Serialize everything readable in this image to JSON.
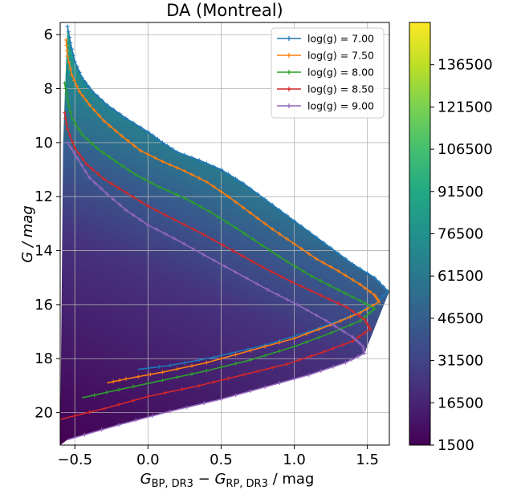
{
  "chart_data": {
    "type": "line",
    "title": "DA (Montreal)",
    "xlabel": {
      "base": "G",
      "sub1": "BP, DR3",
      "mid": " − G",
      "sub2": "RP, DR3",
      "unit": " / mag"
    },
    "ylabel": "G / mag",
    "xlim": [
      -0.6,
      1.65
    ],
    "ylim": [
      21.2,
      5.55
    ],
    "y_inverted": true,
    "grid": true,
    "legend_position": "top-right",
    "x_ticks": [
      {
        "v": -0.5,
        "label": "−0.5"
      },
      {
        "v": 0.0,
        "label": "0.0"
      },
      {
        "v": 0.5,
        "label": "0.5"
      },
      {
        "v": 1.0,
        "label": "1.0"
      },
      {
        "v": 1.5,
        "label": "1.5"
      }
    ],
    "y_ticks": [
      {
        "v": 6,
        "label": "6"
      },
      {
        "v": 8,
        "label": "8"
      },
      {
        "v": 10,
        "label": "10"
      },
      {
        "v": 12,
        "label": "12"
      },
      {
        "v": 14,
        "label": "14"
      },
      {
        "v": 16,
        "label": "16"
      },
      {
        "v": 18,
        "label": "18"
      },
      {
        "v": 20,
        "label": "20"
      }
    ],
    "colorbar": {
      "colormap": "viridis",
      "min": 1500,
      "max": 151500,
      "ticks": [
        "1500",
        "16500",
        "31500",
        "46500",
        "61500",
        "76500",
        "91500",
        "106500",
        "121500",
        "136500"
      ],
      "tick_values": [
        1500,
        16500,
        31500,
        46500,
        61500,
        76500,
        91500,
        106500,
        121500,
        136500
      ]
    },
    "series": [
      {
        "name": "log(g) = 7.00",
        "color": "#1f77b4",
        "points": [
          [
            -0.55,
            5.7
          ],
          [
            -0.53,
            6.3
          ],
          [
            -0.5,
            7.0
          ],
          [
            -0.45,
            7.6
          ],
          [
            -0.38,
            8.1
          ],
          [
            -0.28,
            8.6
          ],
          [
            -0.15,
            9.1
          ],
          [
            0.0,
            9.6
          ],
          [
            0.1,
            10.0
          ],
          [
            0.2,
            10.35
          ],
          [
            0.35,
            10.65
          ],
          [
            0.5,
            11.0
          ],
          [
            0.65,
            11.5
          ],
          [
            0.8,
            12.1
          ],
          [
            0.95,
            12.7
          ],
          [
            1.1,
            13.3
          ],
          [
            1.25,
            13.9
          ],
          [
            1.4,
            14.5
          ],
          [
            1.55,
            15.0
          ],
          [
            1.64,
            15.5
          ],
          [
            1.55,
            16.0
          ],
          [
            1.35,
            16.5
          ],
          [
            1.1,
            17.0
          ],
          [
            0.8,
            17.5
          ],
          [
            0.45,
            17.95
          ],
          [
            0.15,
            18.25
          ],
          [
            -0.07,
            18.4
          ]
        ]
      },
      {
        "name": "log(g) = 7.50",
        "color": "#ff7f0e",
        "points": [
          [
            -0.56,
            6.2
          ],
          [
            -0.55,
            6.8
          ],
          [
            -0.52,
            7.5
          ],
          [
            -0.47,
            8.1
          ],
          [
            -0.4,
            8.6
          ],
          [
            -0.3,
            9.2
          ],
          [
            -0.18,
            9.75
          ],
          [
            -0.05,
            10.3
          ],
          [
            0.1,
            10.7
          ],
          [
            0.25,
            11.05
          ],
          [
            0.4,
            11.45
          ],
          [
            0.55,
            12.0
          ],
          [
            0.7,
            12.6
          ],
          [
            0.85,
            13.2
          ],
          [
            1.0,
            13.75
          ],
          [
            1.15,
            14.3
          ],
          [
            1.3,
            14.75
          ],
          [
            1.45,
            15.25
          ],
          [
            1.55,
            15.65
          ],
          [
            1.58,
            15.9
          ],
          [
            1.45,
            16.3
          ],
          [
            1.25,
            16.75
          ],
          [
            1.0,
            17.25
          ],
          [
            0.7,
            17.7
          ],
          [
            0.4,
            18.15
          ],
          [
            0.1,
            18.5
          ],
          [
            -0.15,
            18.75
          ],
          [
            -0.28,
            18.9
          ]
        ]
      },
      {
        "name": "log(g) = 8.00",
        "color": "#2ca02c",
        "points": [
          [
            -0.57,
            7.8
          ],
          [
            -0.55,
            8.4
          ],
          [
            -0.52,
            9.1
          ],
          [
            -0.45,
            9.7
          ],
          [
            -0.35,
            10.2
          ],
          [
            -0.22,
            10.7
          ],
          [
            -0.08,
            11.2
          ],
          [
            0.08,
            11.65
          ],
          [
            0.25,
            12.05
          ],
          [
            0.42,
            12.55
          ],
          [
            0.6,
            13.15
          ],
          [
            0.78,
            13.8
          ],
          [
            0.95,
            14.4
          ],
          [
            1.12,
            14.95
          ],
          [
            1.3,
            15.45
          ],
          [
            1.45,
            15.85
          ],
          [
            1.55,
            16.15
          ],
          [
            1.45,
            16.6
          ],
          [
            1.25,
            17.05
          ],
          [
            1.0,
            17.55
          ],
          [
            0.7,
            18.05
          ],
          [
            0.4,
            18.45
          ],
          [
            0.1,
            18.8
          ],
          [
            -0.2,
            19.15
          ],
          [
            -0.45,
            19.45
          ]
        ]
      },
      {
        "name": "log(g) = 8.50",
        "color": "#d62728",
        "points": [
          [
            -0.57,
            8.9
          ],
          [
            -0.55,
            9.5
          ],
          [
            -0.5,
            10.2
          ],
          [
            -0.42,
            10.8
          ],
          [
            -0.3,
            11.35
          ],
          [
            -0.15,
            11.85
          ],
          [
            0.0,
            12.35
          ],
          [
            0.18,
            12.85
          ],
          [
            0.38,
            13.4
          ],
          [
            0.58,
            14.0
          ],
          [
            0.78,
            14.6
          ],
          [
            0.98,
            15.15
          ],
          [
            1.18,
            15.65
          ],
          [
            1.36,
            16.1
          ],
          [
            1.48,
            16.55
          ],
          [
            1.52,
            16.9
          ],
          [
            1.4,
            17.35
          ],
          [
            1.2,
            17.75
          ],
          [
            0.95,
            18.2
          ],
          [
            0.65,
            18.6
          ],
          [
            0.35,
            19.0
          ],
          [
            0.0,
            19.4
          ],
          [
            -0.3,
            19.85
          ],
          [
            -0.6,
            20.25
          ]
        ]
      },
      {
        "name": "log(g) = 9.00",
        "color": "#9467bd",
        "points": [
          [
            -0.55,
            10.0
          ],
          [
            -0.48,
            10.6
          ],
          [
            -0.4,
            11.3
          ],
          [
            -0.28,
            11.9
          ],
          [
            -0.15,
            12.5
          ],
          [
            0.0,
            13.05
          ],
          [
            0.18,
            13.55
          ],
          [
            0.38,
            14.15
          ],
          [
            0.6,
            14.8
          ],
          [
            0.82,
            15.45
          ],
          [
            1.02,
            16.0
          ],
          [
            1.22,
            16.6
          ],
          [
            1.4,
            17.2
          ],
          [
            1.47,
            17.55
          ],
          [
            1.48,
            17.8
          ],
          [
            1.35,
            18.15
          ],
          [
            1.1,
            18.6
          ],
          [
            0.8,
            19.05
          ],
          [
            0.5,
            19.5
          ],
          [
            0.15,
            19.95
          ],
          [
            -0.2,
            20.45
          ],
          [
            -0.55,
            21.0
          ]
        ]
      }
    ]
  }
}
